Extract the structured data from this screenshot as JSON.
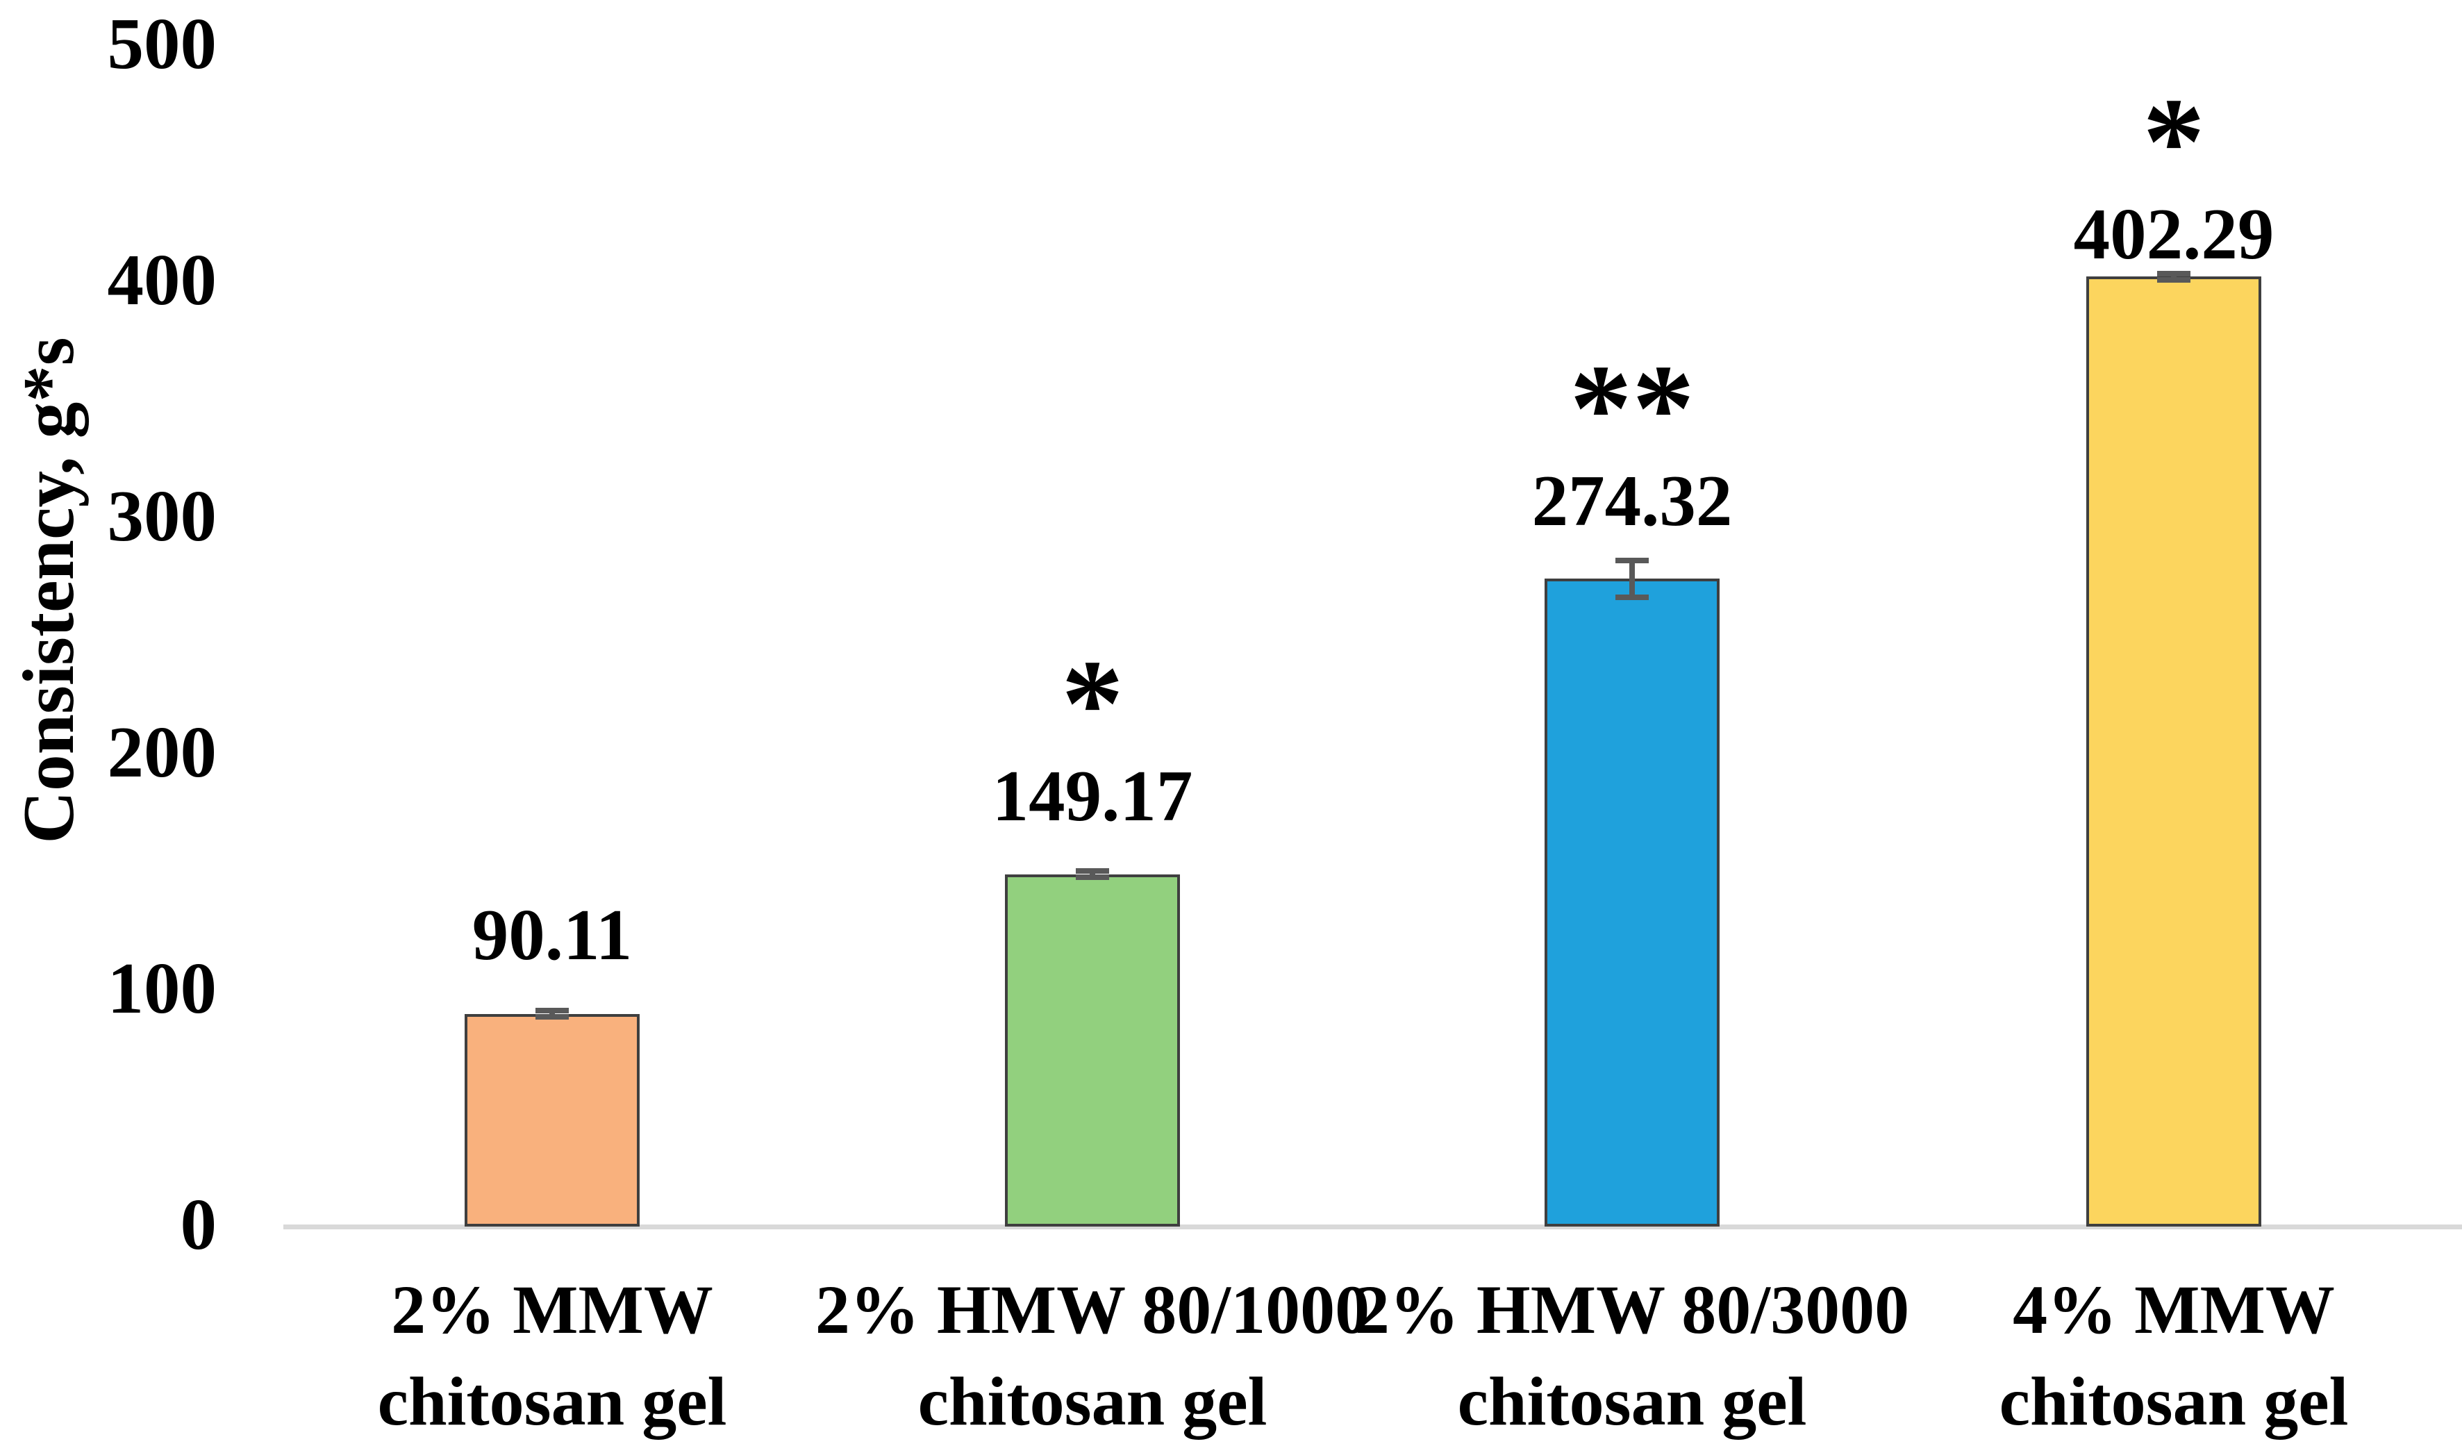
{
  "chart_data": {
    "type": "bar",
    "title": "",
    "xlabel": "",
    "ylabel": "Consistency, g*s",
    "ylim": [
      0,
      500
    ],
    "yticks": [
      0,
      100,
      200,
      300,
      400,
      500
    ],
    "grid": false,
    "legend": false,
    "categories": [
      "2% MMW chitosan gel",
      "2% HMW 80/1000 chitosan gel",
      "2% HMW 80/3000 chitosan gel",
      "4% MMW chitosan gel"
    ],
    "category_lines": [
      [
        "2% MMW",
        "chitosan gel"
      ],
      [
        "2% HMW 80/1000",
        "chitosan gel"
      ],
      [
        "2% HMW 80/3000",
        "chitosan gel"
      ],
      [
        "4% MMW",
        "chitosan gel"
      ]
    ],
    "values": [
      90.11,
      149.17,
      274.32,
      402.29
    ],
    "value_labels": [
      "90.11",
      "149.17",
      "274.32",
      "402.29"
    ],
    "significance": [
      "",
      "*",
      "**",
      "*"
    ],
    "errors": [
      2.5,
      2.5,
      9,
      2.5
    ],
    "bar_colors": [
      "#F9B17D",
      "#92D07E",
      "#1FA1DC",
      "#FCD55E"
    ],
    "bar_border_color": "#3F3F3F",
    "error_bar_color": "#595959",
    "axis_line_color": "#D9D9D9"
  }
}
